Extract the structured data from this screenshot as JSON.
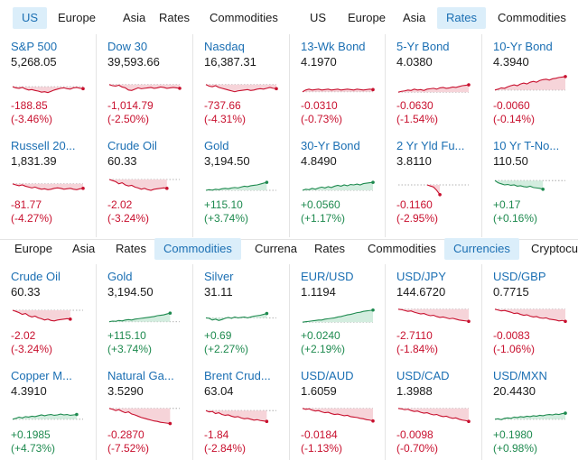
{
  "tabbar_top": [
    {
      "label": "US",
      "active": true
    },
    {
      "label": "Europe",
      "active": false
    },
    {
      "label": "Asia",
      "active": false
    },
    {
      "label": "Rates",
      "active": false
    },
    {
      "label": "Commodities",
      "active": false
    },
    {
      "label": "US",
      "active": false
    },
    {
      "label": "Europe",
      "active": false
    },
    {
      "label": "Asia",
      "active": false
    },
    {
      "label": "Rates",
      "active": true
    },
    {
      "label": "Commodities",
      "active": false
    }
  ],
  "tabbar_mid": [
    {
      "label": "Europe",
      "active": false
    },
    {
      "label": "Asia",
      "active": false
    },
    {
      "label": "Rates",
      "active": false
    },
    {
      "label": "Commodities",
      "active": true
    },
    {
      "label": "Currena",
      "active": false
    },
    {
      "label": "Rates",
      "active": false
    },
    {
      "label": "Commodities",
      "active": false
    },
    {
      "label": "Currencies",
      "active": true
    },
    {
      "label": "Cryptocu",
      "active": false
    }
  ],
  "grid_top": [
    {
      "name": "S&P 500",
      "price": "5,268.05",
      "change": "-188.85",
      "pct": "(-3.46%)",
      "dir": "down",
      "trend": [
        0.55,
        0.6,
        0.62,
        0.58,
        0.65,
        0.7,
        0.68,
        0.72,
        0.75,
        0.8,
        0.78,
        0.82,
        0.76,
        0.7,
        0.66,
        0.62,
        0.6,
        0.64,
        0.66,
        0.6,
        0.58,
        0.62,
        0.64
      ]
    },
    {
      "name": "Dow 30",
      "price": "39,593.66",
      "change": "-1,014.79",
      "pct": "(-2.50%)",
      "dir": "down",
      "trend": [
        0.45,
        0.5,
        0.52,
        0.48,
        0.56,
        0.6,
        0.7,
        0.72,
        0.66,
        0.6,
        0.64,
        0.62,
        0.6,
        0.58,
        0.62,
        0.6,
        0.56,
        0.58,
        0.62,
        0.6,
        0.58,
        0.6,
        0.62
      ]
    },
    {
      "name": "Nasdaq",
      "price": "16,387.31",
      "change": "-737.66",
      "pct": "(-4.31%)",
      "dir": "down",
      "trend": [
        0.45,
        0.52,
        0.55,
        0.5,
        0.58,
        0.62,
        0.66,
        0.7,
        0.74,
        0.78,
        0.74,
        0.72,
        0.7,
        0.68,
        0.72,
        0.7,
        0.66,
        0.64,
        0.66,
        0.62,
        0.58,
        0.62,
        0.64
      ]
    },
    {
      "name": "13-Wk Bond",
      "price": "4.1970",
      "change": "-0.0310",
      "pct": "(-0.73%)",
      "dir": "down",
      "trend": [
        0.78,
        0.7,
        0.66,
        0.7,
        0.68,
        0.66,
        0.7,
        0.68,
        0.66,
        0.7,
        0.68,
        0.66,
        0.7,
        0.68,
        0.66,
        0.68,
        0.7,
        0.66,
        0.68,
        0.7,
        0.68,
        0.66,
        0.68
      ]
    },
    {
      "name": "5-Yr Bond",
      "price": "4.0380",
      "change": "-0.0630",
      "pct": "(-1.54%)",
      "dir": "down",
      "trend": [
        0.8,
        0.76,
        0.74,
        0.7,
        0.72,
        0.66,
        0.7,
        0.68,
        0.72,
        0.66,
        0.64,
        0.62,
        0.66,
        0.6,
        0.58,
        0.62,
        0.6,
        0.56,
        0.58,
        0.54,
        0.5,
        0.48,
        0.46
      ]
    },
    {
      "name": "10-Yr Bond",
      "price": "4.3940",
      "change": "-0.0060",
      "pct": "(-0.14%)",
      "dir": "down",
      "trend": [
        0.7,
        0.66,
        0.6,
        0.62,
        0.55,
        0.5,
        0.46,
        0.5,
        0.42,
        0.38,
        0.42,
        0.34,
        0.3,
        0.34,
        0.26,
        0.22,
        0.2,
        0.24,
        0.18,
        0.16,
        0.12,
        0.1,
        0.08
      ]
    },
    {
      "name": "Russell 20...",
      "price": "1,831.39",
      "change": "-81.77",
      "pct": "(-4.27%)",
      "dir": "down",
      "trend": [
        0.45,
        0.5,
        0.54,
        0.5,
        0.56,
        0.6,
        0.64,
        0.6,
        0.66,
        0.7,
        0.68,
        0.72,
        0.7,
        0.66,
        0.64,
        0.66,
        0.7,
        0.68,
        0.66,
        0.7,
        0.72,
        0.68,
        0.66
      ]
    },
    {
      "name": "Crude Oil",
      "price": "60.33",
      "change": "-2.02",
      "pct": "(-3.24%)",
      "dir": "down",
      "trend": [
        0.25,
        0.3,
        0.35,
        0.45,
        0.4,
        0.5,
        0.55,
        0.52,
        0.6,
        0.64,
        0.7,
        0.66,
        0.72,
        0.75,
        0.7,
        0.68,
        0.66,
        0.64,
        0.66,
        null,
        null,
        null,
        null
      ]
    },
    {
      "name": "Gold",
      "price": "3,194.50",
      "change": "+115.10",
      "pct": "(+3.74%)",
      "dir": "up",
      "trend": [
        0.75,
        0.72,
        0.74,
        0.7,
        0.72,
        0.68,
        0.66,
        0.68,
        0.64,
        0.62,
        0.64,
        0.6,
        0.56,
        0.58,
        0.54,
        0.52,
        0.5,
        0.46,
        0.42,
        0.38,
        null,
        null,
        null
      ]
    },
    {
      "name": "30-Yr Bond",
      "price": "4.8490",
      "change": "+0.0560",
      "pct": "(+1.17%)",
      "dir": "up",
      "trend": [
        0.75,
        0.7,
        0.72,
        0.66,
        0.7,
        0.64,
        0.6,
        0.64,
        0.58,
        0.62,
        0.56,
        0.52,
        0.56,
        0.5,
        0.54,
        0.48,
        0.5,
        0.46,
        0.5,
        0.44,
        0.42,
        0.4,
        0.38
      ]
    },
    {
      "name": "2 Yr Yld Fu...",
      "price": "3.8110",
      "change": "-0.1160",
      "pct": "(-2.95%)",
      "dir": "down",
      "trend": [
        null,
        null,
        null,
        null,
        null,
        null,
        null,
        null,
        null,
        0.5,
        0.55,
        0.6,
        0.75,
        0.95,
        null,
        null,
        null,
        null,
        null,
        null,
        null,
        null,
        null
      ]
    },
    {
      "name": "10 Yr T-No...",
      "price": "110.50",
      "change": "+0.17",
      "pct": "(+0.16%)",
      "dir": "up",
      "trend": [
        0.3,
        0.4,
        0.45,
        0.5,
        0.48,
        0.52,
        0.5,
        0.56,
        0.54,
        0.58,
        0.6,
        0.56,
        0.62,
        0.64,
        0.66,
        0.7,
        null,
        null,
        null,
        null,
        null,
        null,
        null
      ]
    }
  ],
  "grid_bottom": [
    {
      "name": "Crude Oil",
      "price": "60.33",
      "change": "-2.02",
      "pct": "(-3.24%)",
      "dir": "down",
      "trend": [
        0.25,
        0.3,
        0.36,
        0.44,
        0.4,
        0.5,
        0.56,
        0.52,
        0.6,
        0.64,
        0.7,
        0.66,
        0.72,
        0.74,
        0.7,
        0.68,
        0.66,
        0.64,
        0.66,
        null,
        null,
        null,
        null
      ]
    },
    {
      "name": "Gold",
      "price": "3,194.50",
      "change": "+115.10",
      "pct": "(+3.74%)",
      "dir": "up",
      "trend": [
        0.78,
        0.75,
        0.76,
        0.72,
        0.74,
        0.7,
        0.68,
        0.7,
        0.66,
        0.64,
        0.62,
        0.6,
        0.58,
        0.56,
        0.54,
        0.5,
        0.48,
        0.46,
        0.42,
        0.38,
        null,
        null,
        null
      ]
    },
    {
      "name": "Silver",
      "price": "31.11",
      "change": "+0.69",
      "pct": "(+2.27%)",
      "dir": "up",
      "trend": [
        0.6,
        0.62,
        0.7,
        0.66,
        0.72,
        0.68,
        0.62,
        0.58,
        0.62,
        0.56,
        0.6,
        0.58,
        0.56,
        0.6,
        0.56,
        0.52,
        0.5,
        0.48,
        0.44,
        0.4,
        null,
        null,
        null
      ]
    },
    {
      "name": "EUR/USD",
      "price": "1.1194",
      "change": "+0.0240",
      "pct": "(+2.19%)",
      "dir": "up",
      "trend": [
        0.8,
        0.78,
        0.76,
        0.74,
        0.72,
        0.7,
        0.7,
        0.66,
        0.64,
        0.62,
        0.6,
        0.56,
        0.54,
        0.5,
        0.46,
        0.44,
        0.4,
        0.36,
        0.34,
        0.3,
        0.28,
        0.26,
        0.24
      ]
    },
    {
      "name": "USD/JPY",
      "price": "144.6720",
      "change": "-2.7110",
      "pct": "(-1.84%)",
      "dir": "down",
      "trend": [
        0.2,
        0.22,
        0.26,
        0.3,
        0.28,
        0.34,
        0.38,
        0.42,
        0.4,
        0.46,
        0.5,
        0.48,
        0.54,
        0.58,
        0.56,
        0.6,
        0.64,
        0.62,
        0.66,
        0.7,
        0.72,
        0.74,
        0.76
      ]
    },
    {
      "name": "USD/GBP",
      "price": "0.7715",
      "change": "-0.0083",
      "pct": "(-1.06%)",
      "dir": "down",
      "trend": [
        0.2,
        0.24,
        0.28,
        0.26,
        0.3,
        0.34,
        0.4,
        0.38,
        0.44,
        0.48,
        0.46,
        0.52,
        0.56,
        0.54,
        0.6,
        0.62,
        0.6,
        0.66,
        0.68,
        0.7,
        0.74,
        0.72,
        0.76
      ]
    },
    {
      "name": "Copper M...",
      "price": "4.3910",
      "change": "+0.1985",
      "pct": "(+4.73%)",
      "dir": "up",
      "trend": [
        0.7,
        0.66,
        0.6,
        0.64,
        0.58,
        0.6,
        0.56,
        0.58,
        0.54,
        0.5,
        0.54,
        0.5,
        0.48,
        0.52,
        0.5,
        0.46,
        0.5,
        0.48,
        0.52,
        0.5,
        0.48,
        null,
        null
      ]
    },
    {
      "name": "Natural Ga...",
      "price": "3.5290",
      "change": "-0.2870",
      "pct": "(-7.52%)",
      "dir": "down",
      "trend": [
        0.2,
        0.24,
        0.3,
        0.26,
        0.34,
        0.4,
        0.36,
        0.46,
        0.5,
        0.56,
        0.62,
        0.66,
        0.7,
        0.74,
        0.78,
        0.8,
        0.84,
        0.86,
        0.88,
        0.9,
        null,
        null,
        null
      ]
    },
    {
      "name": "Brent Crud...",
      "price": "63.04",
      "change": "-1.84",
      "pct": "(-2.84%)",
      "dir": "down",
      "trend": [
        0.3,
        0.36,
        0.34,
        0.44,
        0.4,
        0.48,
        0.52,
        0.5,
        0.56,
        0.6,
        0.58,
        0.64,
        0.68,
        0.66,
        0.7,
        0.74,
        0.72,
        0.76,
        0.78,
        0.8,
        null,
        null,
        null
      ]
    },
    {
      "name": "USD/AUD",
      "price": "1.6059",
      "change": "-0.0184",
      "pct": "(-1.13%)",
      "dir": "down",
      "trend": [
        0.2,
        0.24,
        0.22,
        0.28,
        0.32,
        0.3,
        0.36,
        0.4,
        0.38,
        0.44,
        0.48,
        0.46,
        0.5,
        0.54,
        0.52,
        0.58,
        0.6,
        0.62,
        0.66,
        0.68,
        0.72,
        0.74,
        0.78
      ]
    },
    {
      "name": "USD/CAD",
      "price": "1.3988",
      "change": "-0.0098",
      "pct": "(-0.70%)",
      "dir": "down",
      "trend": [
        0.2,
        0.22,
        0.26,
        0.24,
        0.3,
        0.34,
        0.32,
        0.38,
        0.42,
        0.4,
        0.46,
        0.5,
        0.48,
        0.54,
        0.58,
        0.56,
        0.62,
        0.66,
        0.64,
        0.7,
        0.74,
        0.76,
        0.8
      ]
    },
    {
      "name": "USD/MXN",
      "price": "20.4430",
      "change": "+0.1980",
      "pct": "(+0.98%)",
      "dir": "up",
      "trend": [
        0.7,
        0.68,
        0.72,
        0.66,
        0.64,
        0.66,
        0.6,
        0.62,
        0.58,
        0.6,
        0.56,
        0.58,
        0.54,
        0.56,
        0.52,
        0.54,
        0.5,
        0.48,
        0.5,
        0.46,
        0.48,
        0.44,
        0.42
      ]
    }
  ],
  "colors": {
    "up": "#1e8a4f",
    "down": "#c8102e",
    "up_fill": "#d3eddf",
    "down_fill": "#f6d4d9",
    "baseline": "#9a9a9a"
  }
}
